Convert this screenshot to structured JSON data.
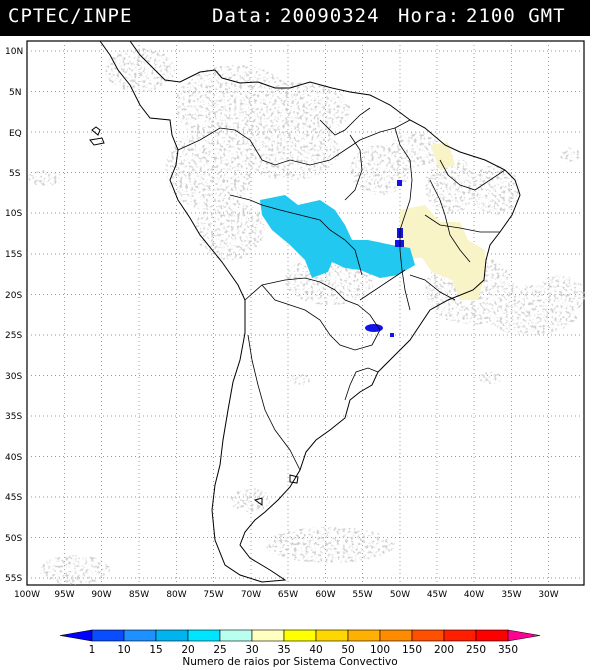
{
  "header": {
    "source": "CPTEC/INPE",
    "data_label": "Data:",
    "date": "20090324",
    "hora_label": "Hora:",
    "time": "2100 GMT"
  },
  "map": {
    "lat_ticks": [
      "10N",
      "5N",
      "EQ",
      "5S",
      "10S",
      "15S",
      "20S",
      "25S",
      "30S",
      "35S",
      "40S",
      "45S",
      "50S",
      "55S"
    ],
    "lon_ticks": [
      "100W",
      "95W",
      "90W",
      "85W",
      "80W",
      "75W",
      "70W",
      "65W",
      "60W",
      "55W",
      "50W",
      "45W",
      "40W",
      "35W",
      "30W"
    ]
  },
  "colorbar": {
    "levels": [
      "1",
      "10",
      "15",
      "20",
      "25",
      "30",
      "35",
      "40",
      "50",
      "100",
      "150",
      "200",
      "250",
      "350"
    ],
    "colors": [
      "#0000ff",
      "#0a4cff",
      "#1e90ff",
      "#00b4f0",
      "#00e5ff",
      "#b8fff0",
      "#ffffc0",
      "#ffff00",
      "#ffd700",
      "#ffb000",
      "#ff8c00",
      "#ff5000",
      "#ff1e00",
      "#ff0000",
      "#ff0090"
    ],
    "title": "Numero de raios por Sistema Convectivo"
  },
  "legend_colors": {
    "blue": "#1414e6",
    "cyan": "#22c8f0",
    "pale_yellow": "#f8f4c8",
    "cloud_gray": "#b4b4b4"
  }
}
